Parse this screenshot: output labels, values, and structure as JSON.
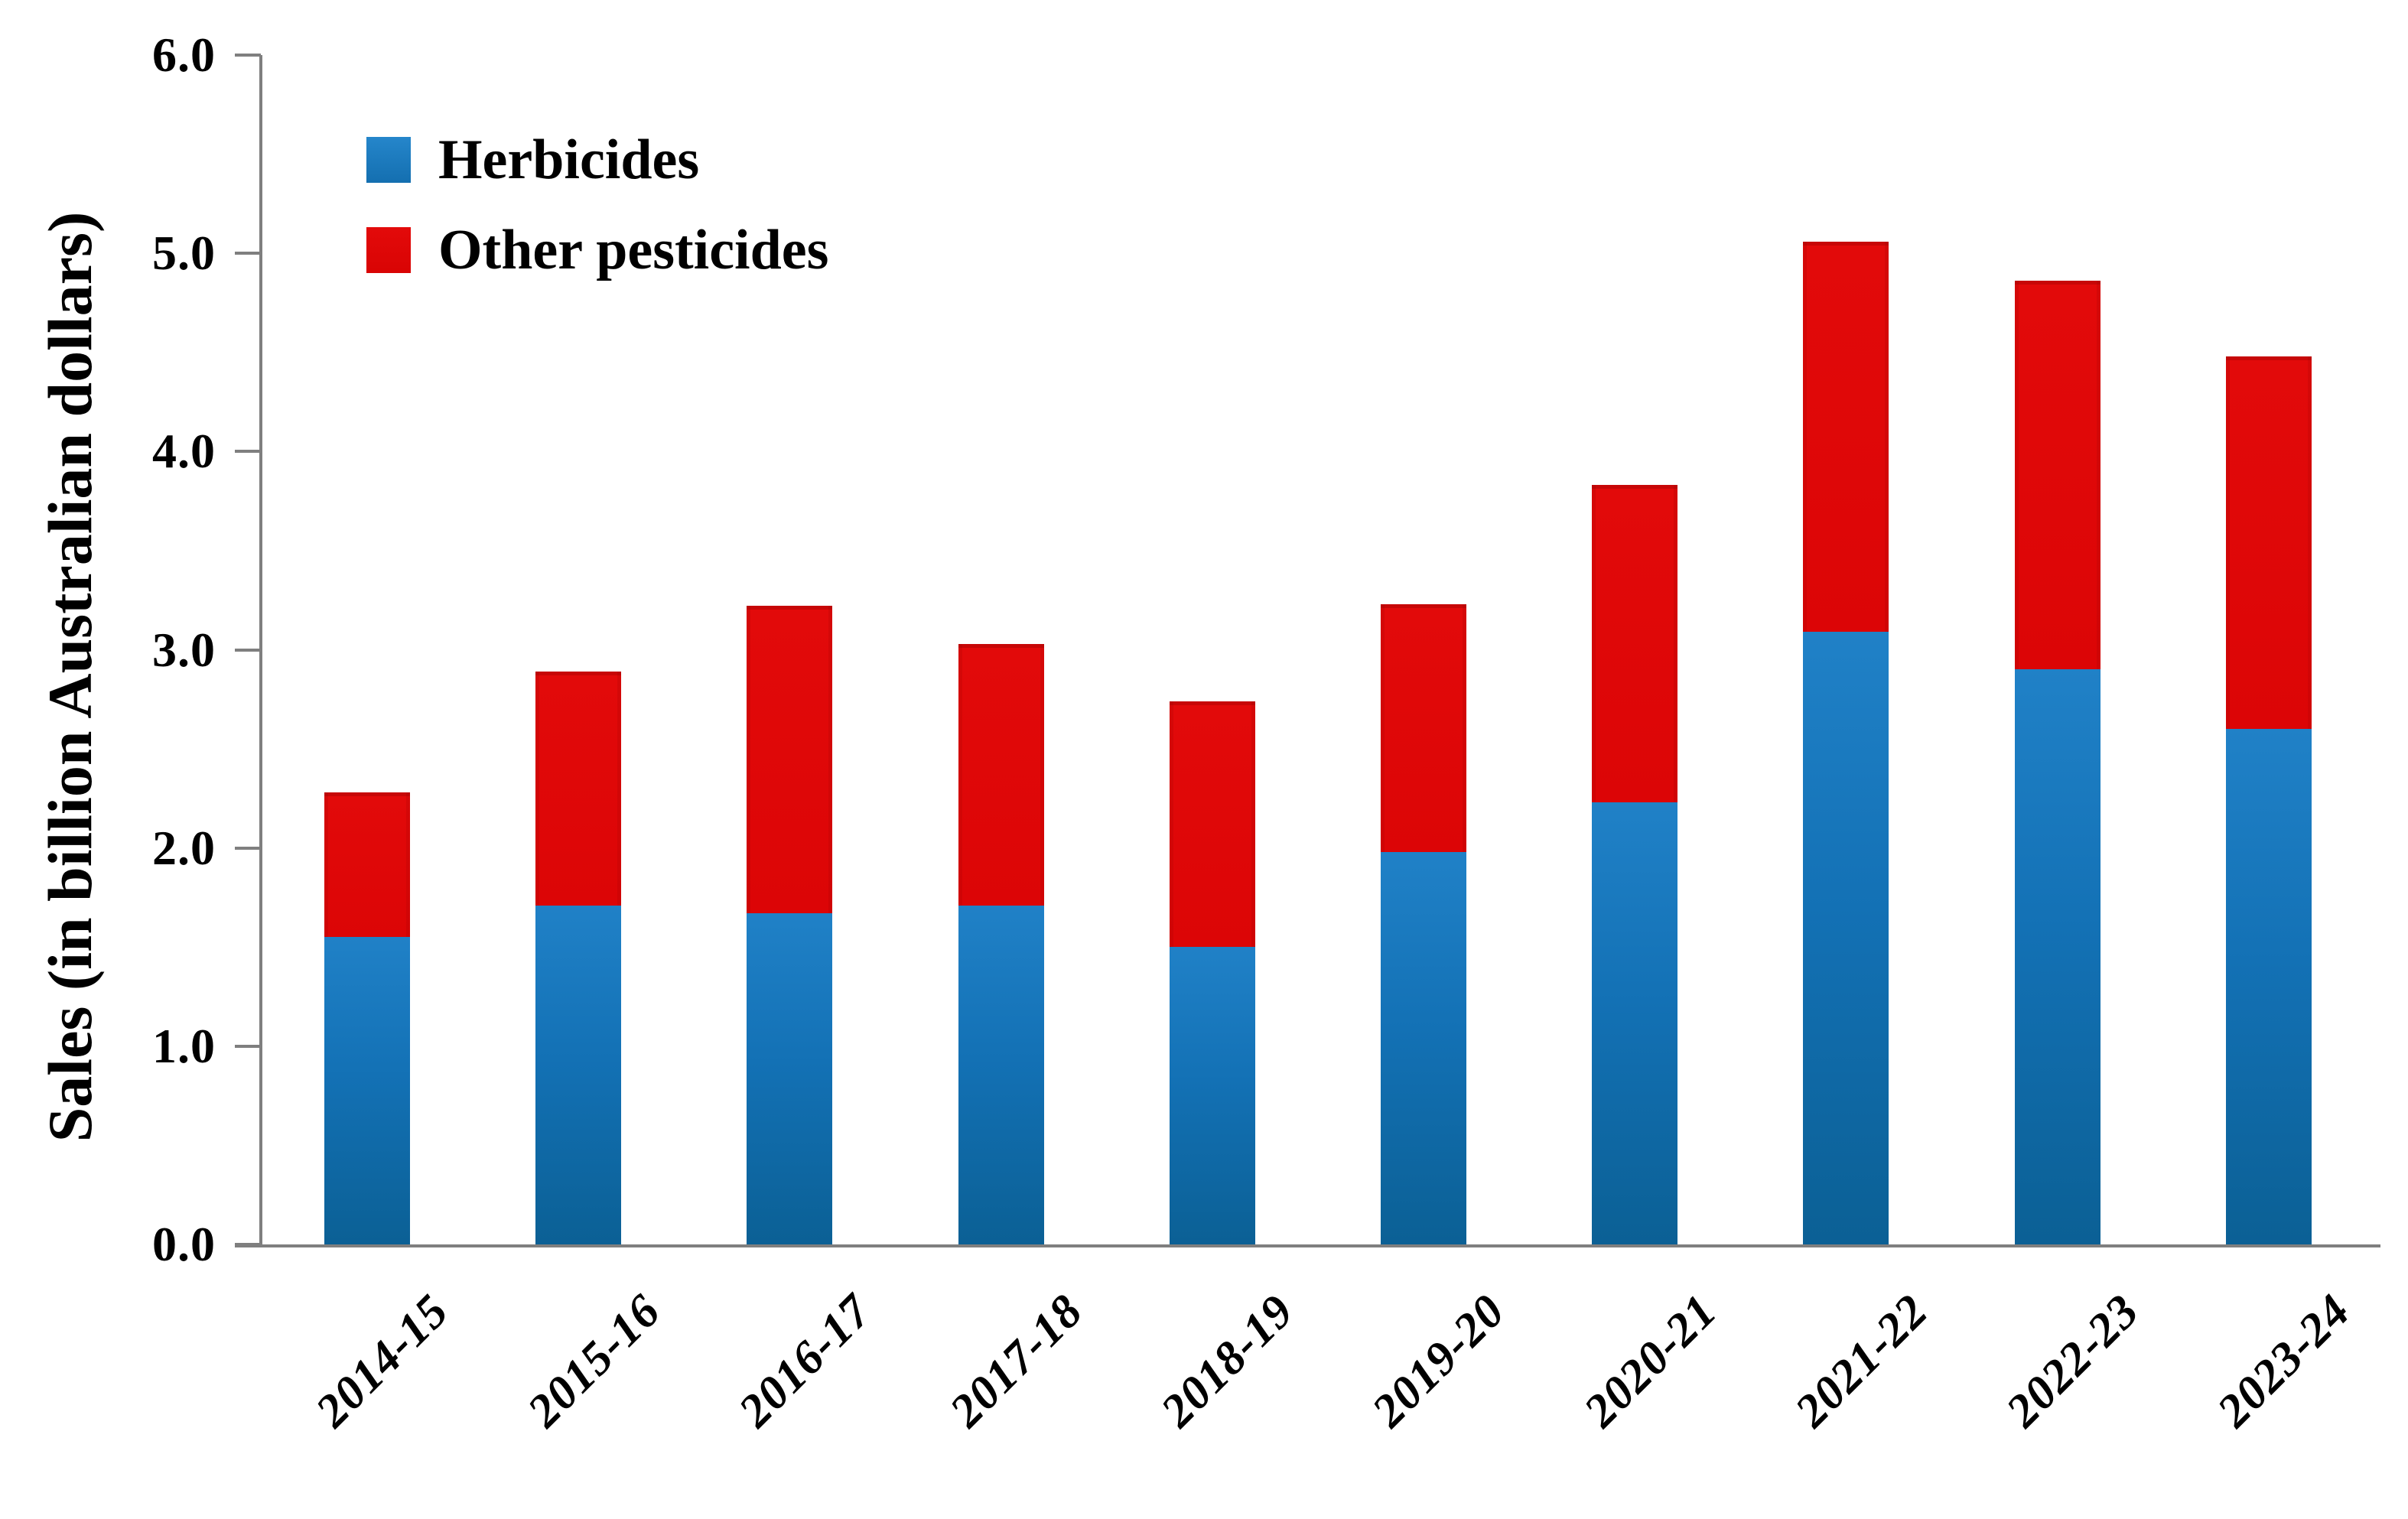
{
  "chart_data": {
    "type": "bar",
    "stacked": true,
    "title": "",
    "xlabel": "",
    "ylabel": "Sales (in billion Australian dollars)",
    "ylim": [
      0,
      6
    ],
    "ytick_step": 1.0,
    "ytick_labels": [
      "0.0",
      "1.0",
      "2.0",
      "3.0",
      "4.0",
      "5.0",
      "6.0"
    ],
    "grid": false,
    "legend_position": "top-left",
    "categories": [
      "2014-15",
      "2015-16",
      "2016-17",
      "2017-18",
      "2018-19",
      "2019-20",
      "2020-21",
      "2021-22",
      "2022-23",
      "2023-24"
    ],
    "series": [
      {
        "name": "Herbicides",
        "color": "#1474B4",
        "values": [
          1.55,
          1.71,
          1.67,
          1.71,
          1.5,
          1.98,
          2.23,
          3.09,
          2.9,
          2.6
        ]
      },
      {
        "name": "Other pesticides",
        "color": "#DD0606",
        "values": [
          0.73,
          1.18,
          1.55,
          1.32,
          1.24,
          1.25,
          1.6,
          1.97,
          1.96,
          1.88
        ]
      }
    ],
    "stack_totals": [
      2.28,
      2.89,
      3.22,
      3.03,
      2.74,
      3.23,
      3.83,
      5.06,
      4.86,
      4.48
    ]
  },
  "axes": {
    "y_axis_title": "Sales (in billion Australian dollars)"
  },
  "legend": {
    "herbicides_label": "Herbicides",
    "other_label": "Other pesticides"
  }
}
